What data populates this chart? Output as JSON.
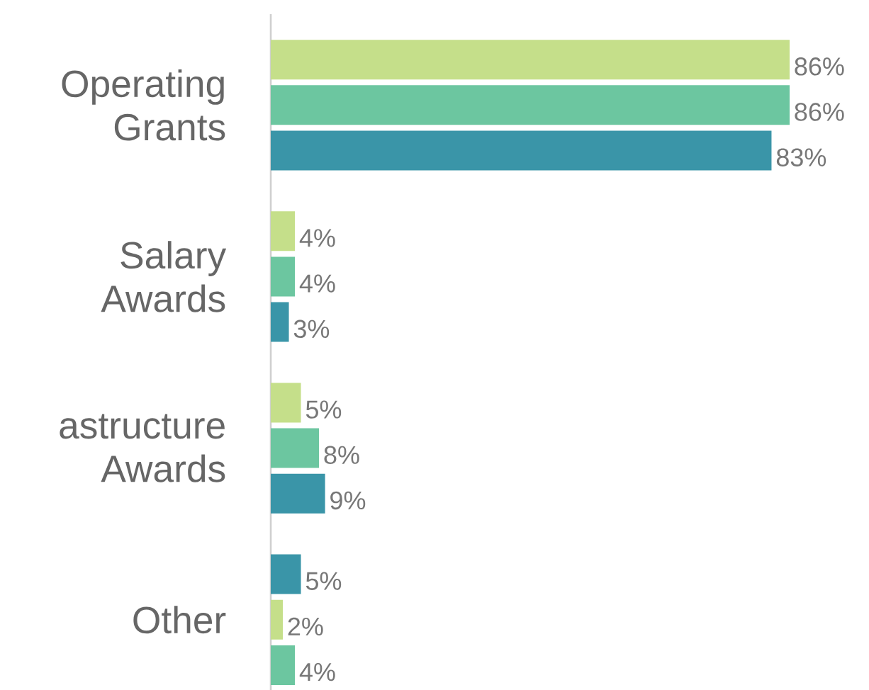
{
  "chart_data": {
    "type": "bar",
    "orientation": "horizontal",
    "categories": [
      "Operating Grants",
      "Salary Awards",
      "astructure Awards",
      "Other"
    ],
    "series": [
      {
        "colors": [
          "#c5df8a",
          "#c5df8a",
          "#c5df8a",
          "#3a95a8"
        ],
        "values": [
          86,
          4,
          5,
          5
        ],
        "value_labels": [
          "86%",
          "4%",
          "5%",
          "5%"
        ]
      },
      {
        "colors": [
          "#6cc6a0",
          "#6cc6a0",
          "#6cc6a0",
          "#c5df8a"
        ],
        "values": [
          86,
          4,
          8,
          2
        ],
        "value_labels": [
          "86%",
          "4%",
          "8%",
          "2%"
        ]
      },
      {
        "colors": [
          "#3a95a8",
          "#3a95a8",
          "#3a95a8",
          "#6cc6a0"
        ],
        "values": [
          83,
          3,
          9,
          4
        ],
        "value_labels": [
          "83%",
          "3%",
          "9%",
          "4%"
        ]
      }
    ]
  }
}
